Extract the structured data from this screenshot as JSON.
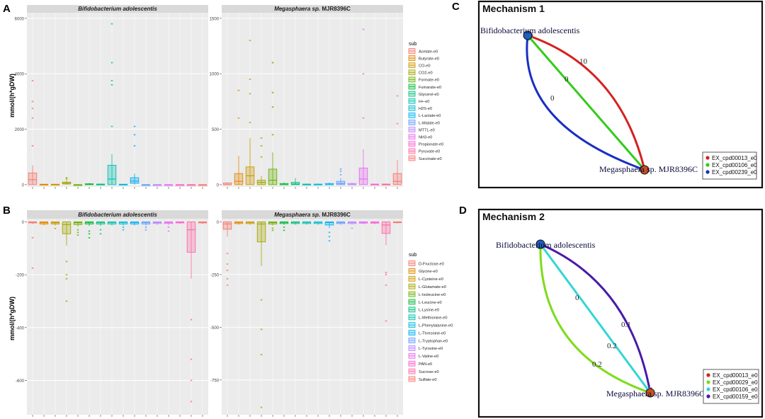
{
  "panel_letters": {
    "a": "A",
    "b": "B",
    "c": "C",
    "d": "D"
  },
  "legend_titles": {
    "a": "sub",
    "b": "sub"
  },
  "chart_data": [
    {
      "type": "box",
      "panel": "A",
      "ylabel": "mmol/(h*gDW)",
      "facets": [
        {
          "title": "Bifidobacterium adolescentis",
          "title_italic_part": "Bifidobacterium adolescentis",
          "title_plain_part": "",
          "ylim": [
            -80,
            6200
          ],
          "yticks": [
            0,
            2000,
            4000,
            6000
          ],
          "boxes": [
            {
              "q1": 0,
              "median": 180,
              "q3": 420,
              "wmin": 0,
              "wmax": 700,
              "outliers": [
                1400,
                2400,
                2750,
                3000,
                3750
              ]
            },
            {
              "q1": 0,
              "median": 0,
              "q3": 15,
              "wmin": 0,
              "wmax": 30,
              "outliers": []
            },
            {
              "q1": 0,
              "median": 0,
              "q3": 15,
              "wmin": 0,
              "wmax": 30,
              "outliers": []
            },
            {
              "q1": 20,
              "median": 50,
              "q3": 90,
              "wmin": 0,
              "wmax": 150,
              "outliers": [
                200,
                250
              ]
            },
            {
              "q1": 0,
              "median": 0,
              "q3": 0,
              "wmin": 0,
              "wmax": 0,
              "outliers": []
            },
            {
              "q1": 0,
              "median": 10,
              "q3": 30,
              "wmin": 0,
              "wmax": 60,
              "outliers": []
            },
            {
              "q1": 0,
              "median": 5,
              "q3": 20,
              "wmin": 0,
              "wmax": 40,
              "outliers": []
            },
            {
              "q1": 0,
              "median": 200,
              "q3": 700,
              "wmin": 0,
              "wmax": 1100,
              "outliers": [
                2100,
                3600,
                3750,
                4400,
                5800
              ]
            },
            {
              "q1": 0,
              "median": 0,
              "q3": 15,
              "wmin": 0,
              "wmax": 30,
              "outliers": []
            },
            {
              "q1": 50,
              "median": 130,
              "q3": 250,
              "wmin": 0,
              "wmax": 400,
              "outliers": [
                2100,
                1800,
                1400
              ]
            },
            {
              "q1": 0,
              "median": 0,
              "q3": 0,
              "wmin": 0,
              "wmax": 0,
              "outliers": []
            },
            {
              "q1": 0,
              "median": 0,
              "q3": 0,
              "wmin": 0,
              "wmax": 0,
              "outliers": []
            },
            {
              "q1": 0,
              "median": 0,
              "q3": 0,
              "wmin": 0,
              "wmax": 0,
              "outliers": []
            },
            {
              "q1": 0,
              "median": 0,
              "q3": 0,
              "wmin": 0,
              "wmax": 0,
              "outliers": []
            },
            {
              "q1": 0,
              "median": 0,
              "q3": 0,
              "wmin": 0,
              "wmax": 0,
              "outliers": []
            },
            {
              "q1": 0,
              "median": 0,
              "q3": 0,
              "wmin": 0,
              "wmax": 0,
              "outliers": []
            }
          ]
        },
        {
          "title": "Megasphaera sp. MJR8396C",
          "title_italic_part": "Megasphaera sp.",
          "title_plain_part": " MJR8396C",
          "ylim": [
            -20,
            1550
          ],
          "yticks": [
            0,
            500,
            1000,
            1500
          ],
          "boxes": [
            {
              "q1": 0,
              "median": 0,
              "q3": 15,
              "wmin": 0,
              "wmax": 20,
              "outliers": []
            },
            {
              "q1": 0,
              "median": 30,
              "q3": 100,
              "wmin": 0,
              "wmax": 260,
              "outliers": [
                600,
                850
              ]
            },
            {
              "q1": 0,
              "median": 80,
              "q3": 160,
              "wmin": 0,
              "wmax": 420,
              "outliers": [
                560,
                820,
                950,
                1300
              ]
            },
            {
              "q1": 0,
              "median": 20,
              "q3": 40,
              "wmin": 0,
              "wmax": 80,
              "outliers": [
                250,
                350,
                420
              ]
            },
            {
              "q1": 0,
              "median": 40,
              "q3": 140,
              "wmin": 0,
              "wmax": 290,
              "outliers": [
                450,
                700,
                830,
                1100
              ]
            },
            {
              "q1": 0,
              "median": 0,
              "q3": 10,
              "wmin": 0,
              "wmax": 20,
              "outliers": []
            },
            {
              "q1": 0,
              "median": 5,
              "q3": 20,
              "wmin": 0,
              "wmax": 60,
              "outliers": []
            },
            {
              "q1": 0,
              "median": 0,
              "q3": 5,
              "wmin": 0,
              "wmax": 10,
              "outliers": []
            },
            {
              "q1": 0,
              "median": 0,
              "q3": 5,
              "wmin": 0,
              "wmax": 10,
              "outliers": []
            },
            {
              "q1": 0,
              "median": 0,
              "q3": 10,
              "wmin": 0,
              "wmax": 20,
              "outliers": []
            },
            {
              "q1": 0,
              "median": 10,
              "q3": 30,
              "wmin": 0,
              "wmax": 60,
              "outliers": [
                90,
                120,
                140
              ]
            },
            {
              "q1": 0,
              "median": 0,
              "q3": 10,
              "wmin": 0,
              "wmax": 20,
              "outliers": []
            },
            {
              "q1": 0,
              "median": 50,
              "q3": 150,
              "wmin": 0,
              "wmax": 320,
              "outliers": [
                600,
                1000,
                1400
              ]
            },
            {
              "q1": 0,
              "median": 0,
              "q3": 5,
              "wmin": 0,
              "wmax": 10,
              "outliers": []
            },
            {
              "q1": 0,
              "median": 0,
              "q3": 5,
              "wmin": 0,
              "wmax": 10,
              "outliers": []
            },
            {
              "q1": 0,
              "median": 30,
              "q3": 100,
              "wmin": 0,
              "wmax": 220,
              "outliers": [
                550,
                800
              ]
            }
          ]
        }
      ],
      "legend": {
        "title": "sub",
        "items": [
          "Acetate-e0",
          "Butyrate-e0",
          "CO-e0",
          "CO2-e0",
          "Formate-e0",
          "Fumarate-e0",
          "Glycerol-e0",
          "H+-e0",
          "H2S-e0",
          "L-Lactate-e0",
          "L-Malate-e0",
          "MTTL-e0",
          "NH3-e0",
          "Propionate-e0",
          "Pyruvate-e0",
          "Succinate-e0"
        ],
        "colors": [
          "#F8766D",
          "#E58700",
          "#C99800",
          "#A3A500",
          "#6BB100",
          "#00BA38",
          "#00BF7D",
          "#00C0AF",
          "#00BCD8",
          "#00B0F6",
          "#619CFF",
          "#B983FF",
          "#E76BF3",
          "#FD61D1",
          "#FF67A4",
          "#F8766D"
        ]
      }
    },
    {
      "type": "box",
      "panel": "B",
      "ylabel": "mmol/(h*gDW)",
      "facets": [
        {
          "title": "Bifidobacterium adolescentis",
          "title_italic_part": "Bifidobacterium adolescentis",
          "title_plain_part": "",
          "ylim": [
            -730,
            12
          ],
          "yticks": [
            0,
            -200,
            -400,
            -600
          ],
          "boxes": [
            {
              "q1": -4,
              "median": -1,
              "q3": 0,
              "wmin": -8,
              "wmax": 0,
              "outliers": [
                -60,
                -175
              ]
            },
            {
              "q1": -8,
              "median": -3,
              "q3": 0,
              "wmin": -14,
              "wmax": 0,
              "outliers": []
            },
            {
              "q1": -8,
              "median": -3,
              "q3": 0,
              "wmin": -14,
              "wmax": 0,
              "outliers": [
                -25
              ]
            },
            {
              "q1": -45,
              "median": -10,
              "q3": 0,
              "wmin": -90,
              "wmax": 0,
              "outliers": [
                -150,
                -200,
                -215,
                -300
              ]
            },
            {
              "q1": -10,
              "median": -3,
              "q3": 0,
              "wmin": -18,
              "wmax": 0,
              "outliers": [
                -30,
                -40,
                -50
              ]
            },
            {
              "q1": -8,
              "median": -2,
              "q3": 0,
              "wmin": -16,
              "wmax": 0,
              "outliers": [
                -35,
                -45,
                -60
              ]
            },
            {
              "q1": -8,
              "median": -2,
              "q3": 0,
              "wmin": -16,
              "wmax": 0,
              "outliers": [
                -30,
                -45
              ]
            },
            {
              "q1": -8,
              "median": -2,
              "q3": 0,
              "wmin": -14,
              "wmax": 0,
              "outliers": []
            },
            {
              "q1": -8,
              "median": -2,
              "q3": 0,
              "wmin": -14,
              "wmax": 0,
              "outliers": [
                -20,
                -30
              ]
            },
            {
              "q1": -8,
              "median": -2,
              "q3": 0,
              "wmin": -14,
              "wmax": 0,
              "outliers": []
            },
            {
              "q1": -8,
              "median": -2,
              "q3": 0,
              "wmin": -14,
              "wmax": 0,
              "outliers": [
                -20,
                -30
              ]
            },
            {
              "q1": -6,
              "median": -2,
              "q3": 0,
              "wmin": -12,
              "wmax": 0,
              "outliers": []
            },
            {
              "q1": -6,
              "median": -2,
              "q3": 0,
              "wmin": -12,
              "wmax": 0,
              "outliers": [
                -20,
                -35
              ]
            },
            {
              "q1": -4,
              "median": -1,
              "q3": 0,
              "wmin": -8,
              "wmax": 0,
              "outliers": []
            },
            {
              "q1": -115,
              "median": -30,
              "q3": 0,
              "wmin": -215,
              "wmax": 0,
              "outliers": [
                -370,
                -520,
                -600,
                -680
              ]
            },
            {
              "q1": -4,
              "median": -1,
              "q3": 0,
              "wmin": -8,
              "wmax": 0,
              "outliers": []
            }
          ]
        },
        {
          "title": "Megasphaera sp. MJR8396C",
          "title_italic_part": "Megasphaera sp.",
          "title_plain_part": " MJR8396C",
          "ylim": [
            -915,
            15
          ],
          "yticks": [
            0,
            -250,
            -500,
            -750
          ],
          "boxes": [
            {
              "q1": -35,
              "median": -10,
              "q3": 0,
              "wmin": -70,
              "wmax": 0,
              "outliers": [
                -150,
                -200,
                -230,
                -270,
                -300
              ]
            },
            {
              "q1": -8,
              "median": -2,
              "q3": 0,
              "wmin": -14,
              "wmax": 0,
              "outliers": []
            },
            {
              "q1": -8,
              "median": -2,
              "q3": 0,
              "wmin": -14,
              "wmax": 0,
              "outliers": []
            },
            {
              "q1": -95,
              "median": -10,
              "q3": 0,
              "wmin": -210,
              "wmax": 0,
              "outliers": [
                -370,
                -510,
                -630,
                -880
              ]
            },
            {
              "q1": -10,
              "median": -3,
              "q3": 0,
              "wmin": -18,
              "wmax": 0,
              "outliers": [
                -30,
                -40
              ]
            },
            {
              "q1": -8,
              "median": -2,
              "q3": 0,
              "wmin": -14,
              "wmax": 0,
              "outliers": [
                -25,
                -40
              ]
            },
            {
              "q1": -8,
              "median": -2,
              "q3": 0,
              "wmin": -14,
              "wmax": 0,
              "outliers": []
            },
            {
              "q1": -8,
              "median": -2,
              "q3": 0,
              "wmin": -14,
              "wmax": 0,
              "outliers": []
            },
            {
              "q1": -8,
              "median": -2,
              "q3": 0,
              "wmin": -14,
              "wmax": 0,
              "outliers": []
            },
            {
              "q1": -15,
              "median": -3,
              "q3": 0,
              "wmin": -30,
              "wmax": 0,
              "outliers": [
                -50,
                -70,
                -90
              ]
            },
            {
              "q1": -8,
              "median": -2,
              "q3": 0,
              "wmin": -14,
              "wmax": 0,
              "outliers": []
            },
            {
              "q1": -8,
              "median": -2,
              "q3": 0,
              "wmin": -14,
              "wmax": 0,
              "outliers": [
                -30
              ]
            },
            {
              "q1": -6,
              "median": -2,
              "q3": 0,
              "wmin": -12,
              "wmax": 0,
              "outliers": []
            },
            {
              "q1": -6,
              "median": -2,
              "q3": 0,
              "wmin": -12,
              "wmax": 0,
              "outliers": []
            },
            {
              "q1": -55,
              "median": -15,
              "q3": 0,
              "wmin": -110,
              "wmax": 0,
              "outliers": [
                -240,
                -250,
                -300,
                -470
              ]
            },
            {
              "q1": -4,
              "median": -1,
              "q3": 0,
              "wmin": -8,
              "wmax": 0,
              "outliers": []
            }
          ]
        }
      ],
      "legend": {
        "title": "sub",
        "items": [
          "D-Fructose-e0",
          "Glycine-e0",
          "L-Cysteine-e0",
          "L-Glutamate-e0",
          "L-Isoleucine-e0",
          "L-Leucine-e0",
          "L-Lysine-e0",
          "L-Methionine-e0",
          "L-Phenylalanine-e0",
          "L-Threonine-e0",
          "L-Tryptophan-e0",
          "L-Tyrosine-e0",
          "L-Valine-e0",
          "PAN-e0",
          "Sucrose-e0",
          "Sulfate-e0"
        ],
        "colors": [
          "#F8766D",
          "#E58700",
          "#C99800",
          "#A3A500",
          "#6BB100",
          "#00BA38",
          "#00BF7D",
          "#00C0AF",
          "#00BCD8",
          "#00B0F6",
          "#619CFF",
          "#B983FF",
          "#E76BF3",
          "#FD61D1",
          "#FF67A4",
          "#F8766D"
        ]
      }
    },
    {
      "type": "network",
      "panel": "C",
      "title": "Mechanism 1",
      "nodes": [
        {
          "id": "bif",
          "label": "Bifidobacterium adolescentis",
          "color": "#1f5fbf"
        },
        {
          "id": "meg",
          "label": "Megasphaera sp. MJR8396C",
          "color": "#c8501e"
        }
      ],
      "edges": [
        {
          "from": "meg",
          "to": "bif",
          "label": "10",
          "color": "#d62020",
          "metabolite": "EX_cpd00013_e0"
        },
        {
          "from": "meg",
          "to": "bif",
          "label": "0",
          "color": "#33cc1a",
          "metabolite": "EX_cpd00106_e0"
        },
        {
          "from": "bif",
          "to": "meg",
          "label": "0",
          "color": "#1a2fc2",
          "metabolite": "EX_cpd00239_e0"
        }
      ],
      "legend": [
        {
          "label": "EX_cpd00013_e0",
          "color": "#d62020"
        },
        {
          "label": "EX_cpd00106_e0",
          "color": "#33cc1a"
        },
        {
          "label": "EX_cpd00239_e0",
          "color": "#1a2fc2"
        }
      ]
    },
    {
      "type": "network",
      "panel": "D",
      "title": "Mechanism 2",
      "nodes": [
        {
          "id": "bif",
          "label": "Bifidobacterium adolescentis",
          "color": "#1f5fbf"
        },
        {
          "id": "meg",
          "label": "Megasphaera sp. MJR8396C",
          "color": "#c8501e"
        }
      ],
      "edges": [
        {
          "from": "bif",
          "to": "meg",
          "label": "0.1",
          "color": "#4a1aa8",
          "metabolite": "EX_cpd00159_e0"
        },
        {
          "from": "bif",
          "to": "meg",
          "label": "0.2",
          "color": "#33d6d6",
          "metabolite": "EX_cpd00106_e0"
        },
        {
          "from": "meg",
          "to": "bif",
          "label": "0.2",
          "color": "#7ddc1a",
          "metabolite": "EX_cpd00029_e0"
        }
      ],
      "extra_labels": [
        "0"
      ],
      "legend": [
        {
          "label": "EX_cpd00013_e0",
          "color": "#d62020"
        },
        {
          "label": "EX_cpd00029_e0",
          "color": "#7ddc1a"
        },
        {
          "label": "EX_cpd00106_e0",
          "color": "#33d6d6"
        },
        {
          "label": "EX_cpd00159_e0",
          "color": "#4a1aa8"
        }
      ]
    }
  ]
}
